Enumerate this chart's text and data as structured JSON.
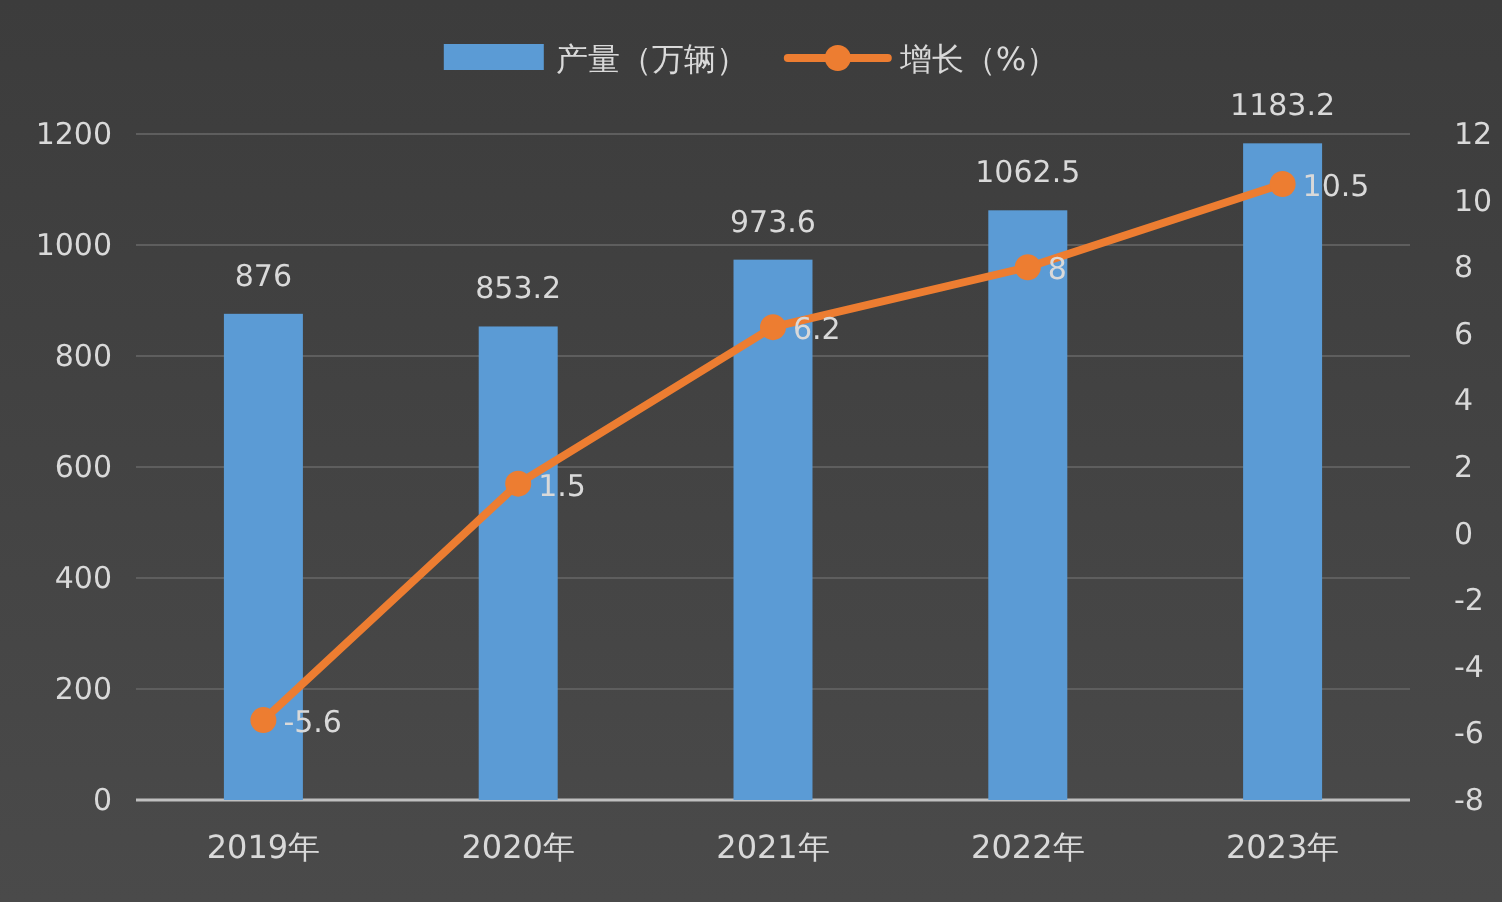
{
  "chart_data": {
    "type": "bar",
    "categories": [
      "2019年",
      "2020年",
      "2021年",
      "2022年",
      "2023年"
    ],
    "series": [
      {
        "name": "产量（万辆）",
        "color": "#5b9bd5",
        "values": [
          876,
          853.2,
          973.6,
          1062.5,
          1183.2
        ]
      },
      {
        "name": "增长（%）",
        "type": "line",
        "axis": "y2",
        "marker": "circle",
        "color": "#ed7d31",
        "values": [
          -5.6,
          1.5,
          6.2,
          8,
          10.5
        ]
      }
    ],
    "ylim": [
      0,
      1200
    ],
    "yticks": [
      0,
      200,
      400,
      600,
      800,
      1000,
      1200
    ],
    "y2lim": [
      -8,
      12
    ],
    "y2ticks": [
      -8,
      -6,
      -4,
      -2,
      0,
      2,
      4,
      6,
      8,
      10,
      12
    ],
    "grid": "y",
    "legend": "top",
    "data_labels": true
  }
}
